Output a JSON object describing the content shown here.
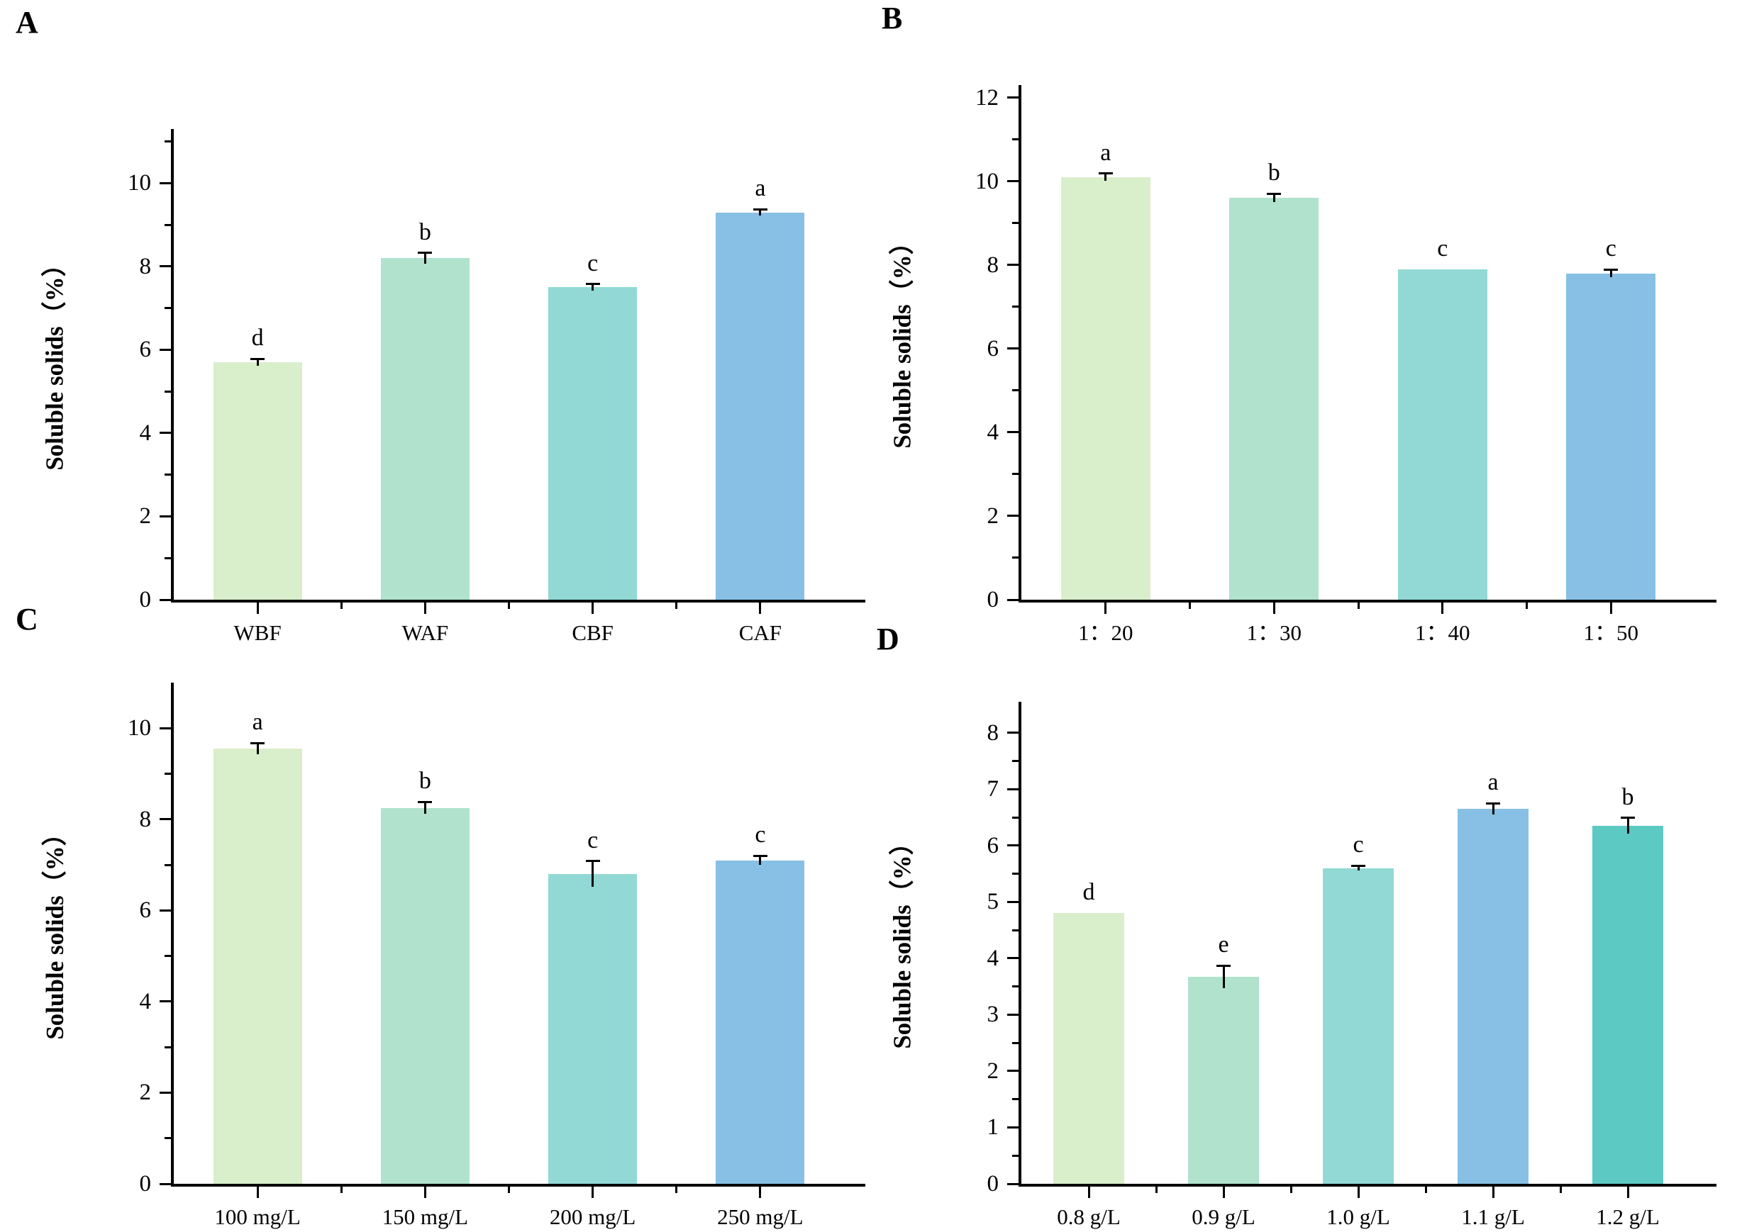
{
  "figure": {
    "background": "#ffffff",
    "panel_letters": [
      "A",
      "B",
      "C",
      "D"
    ]
  },
  "chart_data": [
    {
      "panel": "A",
      "type": "bar",
      "title": "",
      "xlabel": "",
      "ylabel": "Soluble solids（%）",
      "categories": [
        "WBF",
        "WAF",
        "CBF",
        "CAF"
      ],
      "values": [
        5.7,
        8.2,
        7.5,
        9.3
      ],
      "errors": [
        0.08,
        0.13,
        0.08,
        0.07
      ],
      "sig_letters": [
        "d",
        "b",
        "c",
        "a"
      ],
      "bar_colors": [
        "#d9eecb",
        "#b0e2cd",
        "#92d9d5",
        "#87c0e4"
      ],
      "ylim": [
        0,
        11.3
      ],
      "yticks": [
        0,
        2,
        4,
        6,
        8,
        10
      ],
      "minor_ytick_step": 1,
      "grid": false,
      "legend": "none"
    },
    {
      "panel": "B",
      "type": "bar",
      "title": "",
      "xlabel": "",
      "ylabel": "Soluble solids（%）",
      "categories": [
        "1：20",
        "1：30",
        "1：40",
        "1：50"
      ],
      "values": [
        10.1,
        9.6,
        7.9,
        7.8
      ],
      "errors": [
        0.09,
        0.1,
        0,
        0.09
      ],
      "sig_letters": [
        "a",
        "b",
        "c",
        "c"
      ],
      "bar_colors": [
        "#d9eecb",
        "#b0e2cd",
        "#92d9d5",
        "#87c0e4"
      ],
      "ylim": [
        0,
        12.3
      ],
      "yticks": [
        0,
        2,
        4,
        6,
        8,
        10,
        12
      ],
      "minor_ytick_step": 1,
      "grid": false,
      "legend": "none"
    },
    {
      "panel": "C",
      "type": "bar",
      "title": "",
      "xlabel": "",
      "ylabel": "Soluble solids（%）",
      "categories": [
        "100 mg/L",
        "150 mg/L",
        "200 mg/L",
        "250 mg/L"
      ],
      "values": [
        9.55,
        8.25,
        6.8,
        7.1
      ],
      "errors": [
        0.12,
        0.13,
        0.28,
        0.1
      ],
      "sig_letters": [
        "a",
        "b",
        "c",
        "c"
      ],
      "bar_colors": [
        "#d9eecb",
        "#b0e2cd",
        "#92d9d5",
        "#87c0e4"
      ],
      "ylim": [
        0,
        11.0
      ],
      "yticks": [
        0,
        2,
        4,
        6,
        8,
        10
      ],
      "minor_ytick_step": 1,
      "grid": false,
      "legend": "none"
    },
    {
      "panel": "D",
      "type": "bar",
      "title": "",
      "xlabel": "",
      "ylabel": "Soluble solids（%）",
      "categories": [
        "0.8 g/L",
        "0.9 g/L",
        "1.0 g/L",
        "1.1 g/L",
        "1.2 g/L"
      ],
      "values": [
        4.8,
        3.67,
        5.6,
        6.65,
        6.35
      ],
      "errors": [
        0,
        0.2,
        0.04,
        0.1,
        0.14
      ],
      "sig_letters": [
        "d",
        "e",
        "c",
        "a",
        "b"
      ],
      "bar_colors": [
        "#d9eecb",
        "#b0e2cd",
        "#92d9d5",
        "#87c0e4",
        "#5cc9c3"
      ],
      "ylim": [
        0,
        8.55
      ],
      "yticks": [
        0,
        1,
        2,
        3,
        4,
        5,
        6,
        7,
        8
      ],
      "minor_ytick_step": 0.5,
      "grid": false,
      "legend": "none"
    }
  ]
}
